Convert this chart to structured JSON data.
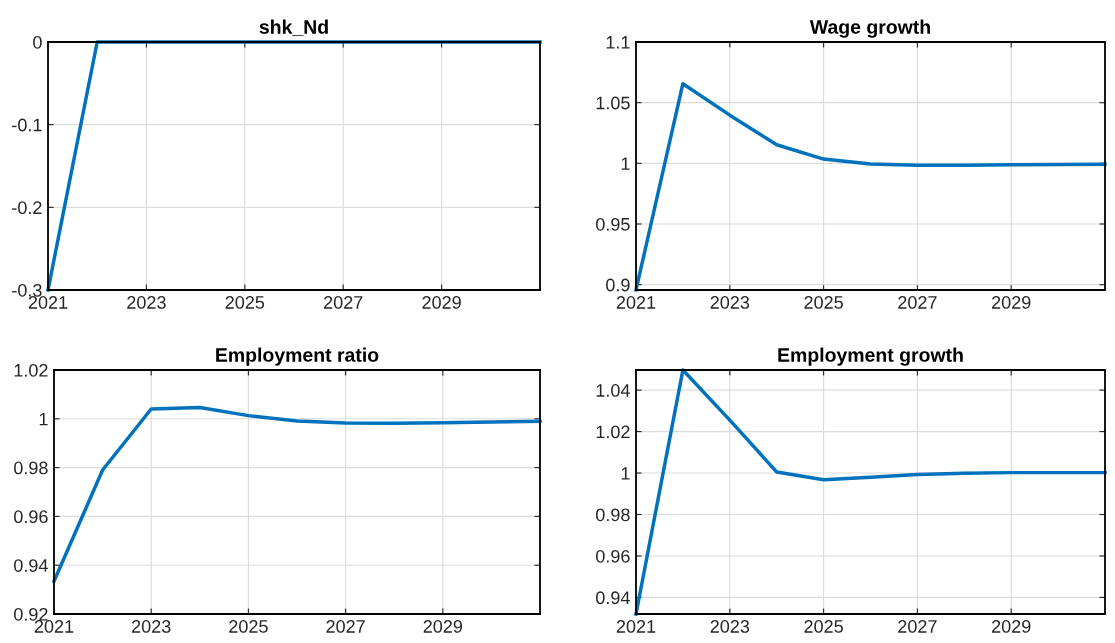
{
  "chart_data": [
    {
      "type": "line",
      "title": "shk_Nd",
      "x": [
        2021,
        2022,
        2023,
        2024,
        2025,
        2026,
        2027,
        2028,
        2029,
        2030,
        2031
      ],
      "series": [
        {
          "color": "#0072bd",
          "values": [
            -0.3,
            0,
            0,
            0,
            0,
            0,
            0,
            0,
            0,
            0,
            0
          ]
        }
      ],
      "xlim": [
        2021,
        2031
      ],
      "xticks": [
        2021,
        2023,
        2025,
        2027,
        2029
      ],
      "ylim": [
        -0.3,
        0
      ],
      "yticks": [
        -0.3,
        -0.2,
        -0.1,
        0
      ],
      "grid": true,
      "legend": false
    },
    {
      "type": "line",
      "title": "Wage growth",
      "x": [
        2021,
        2022,
        2023,
        2024,
        2025,
        2026,
        2027,
        2028,
        2029,
        2030,
        2031
      ],
      "series": [
        {
          "color": "#0072bd",
          "values": [
            0.8956,
            1.0656,
            1.0397,
            1.0153,
            1.0035,
            0.9995,
            0.9985,
            0.9985,
            0.9988,
            0.999,
            0.9993
          ]
        }
      ],
      "xlim": [
        2021,
        2031
      ],
      "xticks": [
        2021,
        2023,
        2025,
        2027,
        2029
      ],
      "ylim": [
        0.8956,
        1.1
      ],
      "yticks": [
        0.9,
        0.95,
        1,
        1.05,
        1.1
      ],
      "grid": true,
      "legend": false
    },
    {
      "type": "line",
      "title": "Employment ratio",
      "x": [
        2021,
        2022,
        2023,
        2024,
        2025,
        2026,
        2027,
        2028,
        2029,
        2030,
        2031
      ],
      "series": [
        {
          "color": "#0072bd",
          "values": [
            0.9334,
            0.979,
            1.004,
            1.0046,
            1.0013,
            0.9991,
            0.9983,
            0.9982,
            0.9984,
            0.9987,
            0.999
          ]
        }
      ],
      "xlim": [
        2021,
        2031
      ],
      "xticks": [
        2021,
        2023,
        2025,
        2027,
        2029
      ],
      "ylim": [
        0.92,
        1.02
      ],
      "yticks": [
        0.92,
        0.94,
        0.96,
        0.98,
        1,
        1.02
      ],
      "grid": true,
      "legend": false
    },
    {
      "type": "line",
      "title": "Employment growth",
      "x": [
        2021,
        2022,
        2023,
        2024,
        2025,
        2026,
        2027,
        2028,
        2029,
        2030,
        2031
      ],
      "series": [
        {
          "color": "#0072bd",
          "values": [
            0.932,
            1.0497,
            1.0255,
            1.0005,
            0.9968,
            0.998,
            0.9993,
            0.9999,
            1.0002,
            1.0002,
            1.0002
          ]
        }
      ],
      "xlim": [
        2021,
        2031
      ],
      "xticks": [
        2021,
        2023,
        2025,
        2027,
        2029
      ],
      "ylim": [
        0.932,
        1.0497
      ],
      "yticks": [
        0.94,
        0.96,
        0.98,
        1,
        1.02,
        1.04
      ],
      "grid": true,
      "legend": false
    }
  ]
}
